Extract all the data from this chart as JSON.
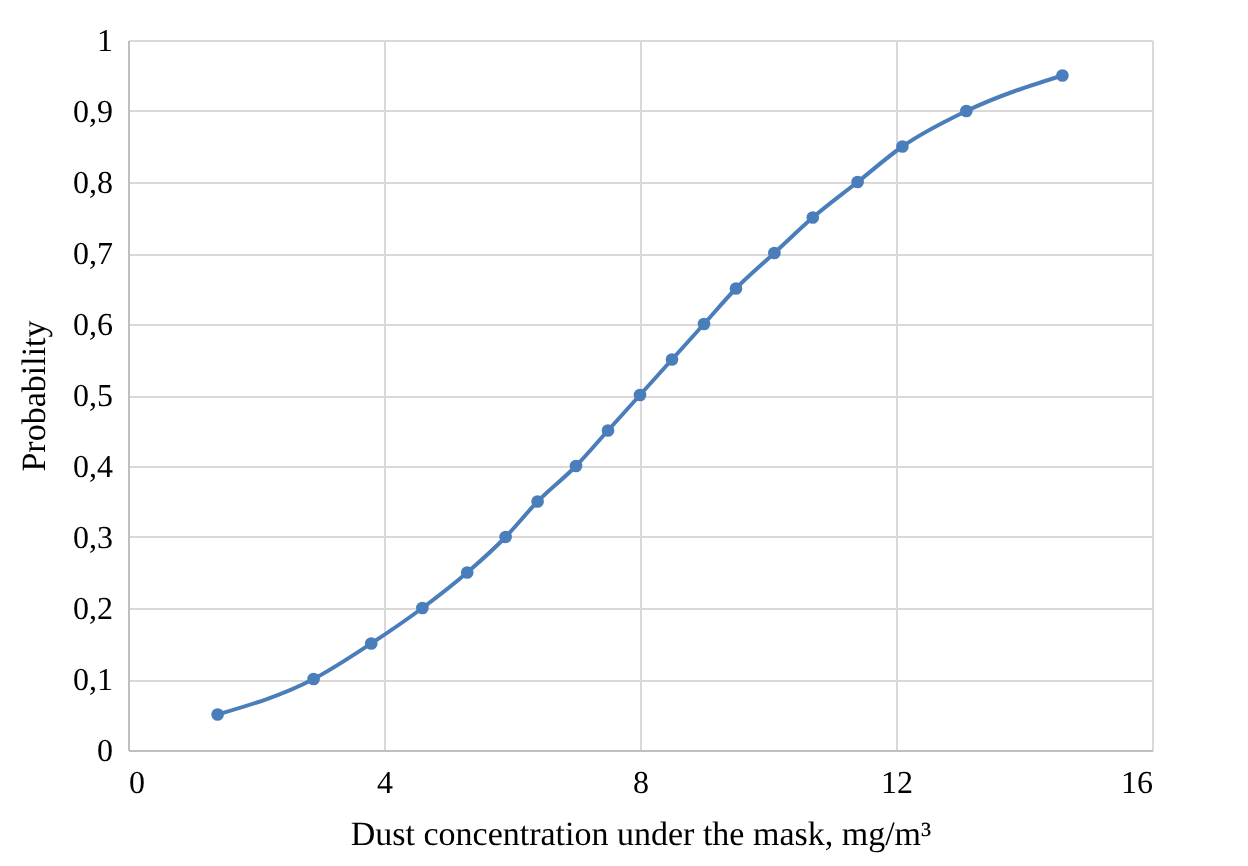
{
  "chart_data": {
    "type": "line",
    "xlabel": "Dust concentration under the mask, mg/m³",
    "ylabel": "Probability",
    "x": [
      1.4,
      2.9,
      3.8,
      4.6,
      5.3,
      5.9,
      6.4,
      7.0,
      7.5,
      8.0,
      8.5,
      9.0,
      9.5,
      10.1,
      10.7,
      11.4,
      12.1,
      13.1,
      14.6
    ],
    "series": [
      {
        "color": "#4a7ebb",
        "values": [
          0.05,
          0.1,
          0.15,
          0.2,
          0.25,
          0.3,
          0.35,
          0.4,
          0.45,
          0.5,
          0.55,
          0.6,
          0.65,
          0.7,
          0.75,
          0.8,
          0.85,
          0.9,
          0.95
        ]
      }
    ],
    "xlim": [
      0,
      16
    ],
    "xticks": [
      0,
      4,
      8,
      12,
      16
    ],
    "ylim": [
      0,
      1
    ],
    "yticks": [
      0,
      {
        "value": 0.1,
        "label": "0,1"
      },
      {
        "value": 0.2,
        "label": "0,2"
      },
      {
        "value": 0.3,
        "label": "0,3"
      },
      {
        "value": 0.4,
        "label": "0,4"
      },
      {
        "value": 0.5,
        "label": "0,5"
      },
      {
        "value": 0.6,
        "label": "0,6"
      },
      {
        "value": 0.7,
        "label": "0,7"
      },
      {
        "value": 0.8,
        "label": "0,8"
      },
      {
        "value": 0.9,
        "label": "0,9"
      },
      1
    ],
    "grid": true,
    "marker": "circle",
    "line_style": "solid"
  }
}
